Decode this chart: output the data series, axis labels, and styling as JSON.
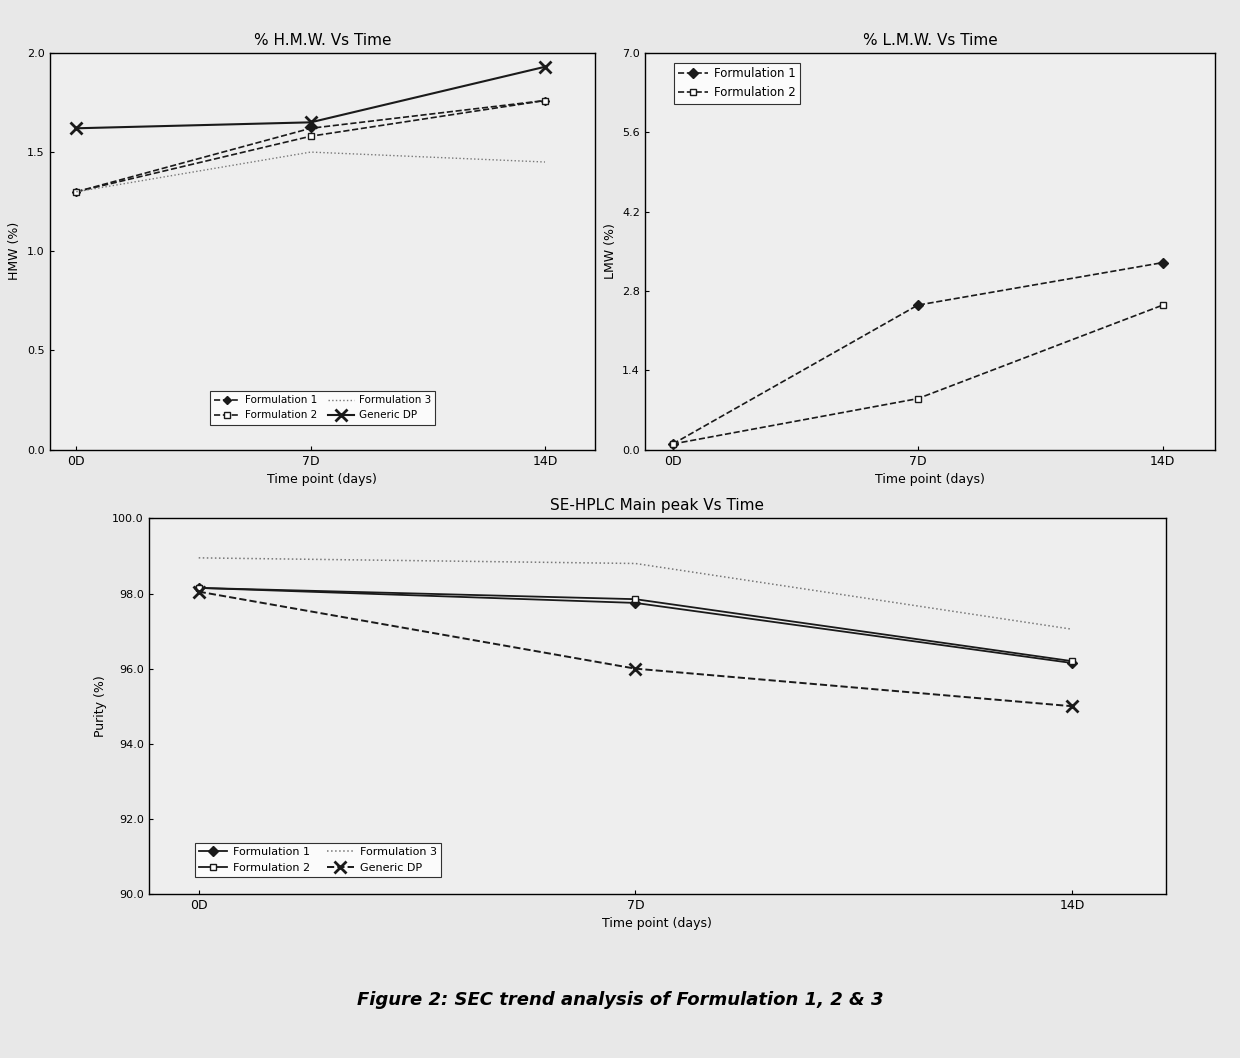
{
  "hmw_title": "% H.M.W. Vs Time",
  "hmw_xlabel": "Time point (days)",
  "hmw_ylabel": "HMW (%)",
  "hmw_xticks": [
    0,
    7,
    14
  ],
  "hmw_xticklabels": [
    "0D",
    "7D",
    "14D"
  ],
  "hmw_ylim": [
    0.0,
    2.0
  ],
  "hmw_yticks": [
    0.0,
    0.5,
    1.0,
    1.5,
    2.0
  ],
  "hmw_f1": [
    1.3,
    1.62,
    1.76
  ],
  "hmw_f2": [
    1.3,
    1.58,
    1.76
  ],
  "hmw_f3": [
    1.3,
    1.5,
    1.45
  ],
  "hmw_gdp": [
    1.62,
    1.65,
    1.93
  ],
  "lmw_title": "% L.M.W. Vs Time",
  "lmw_xlabel": "Time point (days)",
  "lmw_ylabel": "LMW (%)",
  "lmw_xticks": [
    0,
    7,
    14
  ],
  "lmw_xticklabels": [
    "0D",
    "7D",
    "14D"
  ],
  "lmw_ylim": [
    0.0,
    7.0
  ],
  "lmw_yticks": [
    0.0,
    1.4,
    2.8,
    4.2,
    5.6,
    7.0
  ],
  "lmw_f1": [
    0.1,
    2.55,
    3.3
  ],
  "lmw_f2": [
    0.1,
    0.9,
    2.55
  ],
  "main_title": "SE-HPLC Main peak Vs Time",
  "main_xlabel": "Time point (days)",
  "main_ylabel": "Purity (%)",
  "main_xticks": [
    0,
    7,
    14
  ],
  "main_xticklabels": [
    "0D",
    "7D",
    "14D"
  ],
  "main_ylim": [
    90.0,
    100.0
  ],
  "main_yticks": [
    90.0,
    92.0,
    94.0,
    96.0,
    98.0,
    100.0
  ],
  "main_f1": [
    98.15,
    97.75,
    96.15
  ],
  "main_f2": [
    98.15,
    97.85,
    96.2
  ],
  "main_f3": [
    98.95,
    98.8,
    97.05
  ],
  "main_gdp": [
    98.05,
    96.0,
    95.0
  ],
  "caption": "Figure 2: SEC trend analysis of Formulation 1, 2 & 3",
  "color_dark": "#1a1a1a",
  "color_gray": "#777777",
  "color_light": "#aaaaaa"
}
